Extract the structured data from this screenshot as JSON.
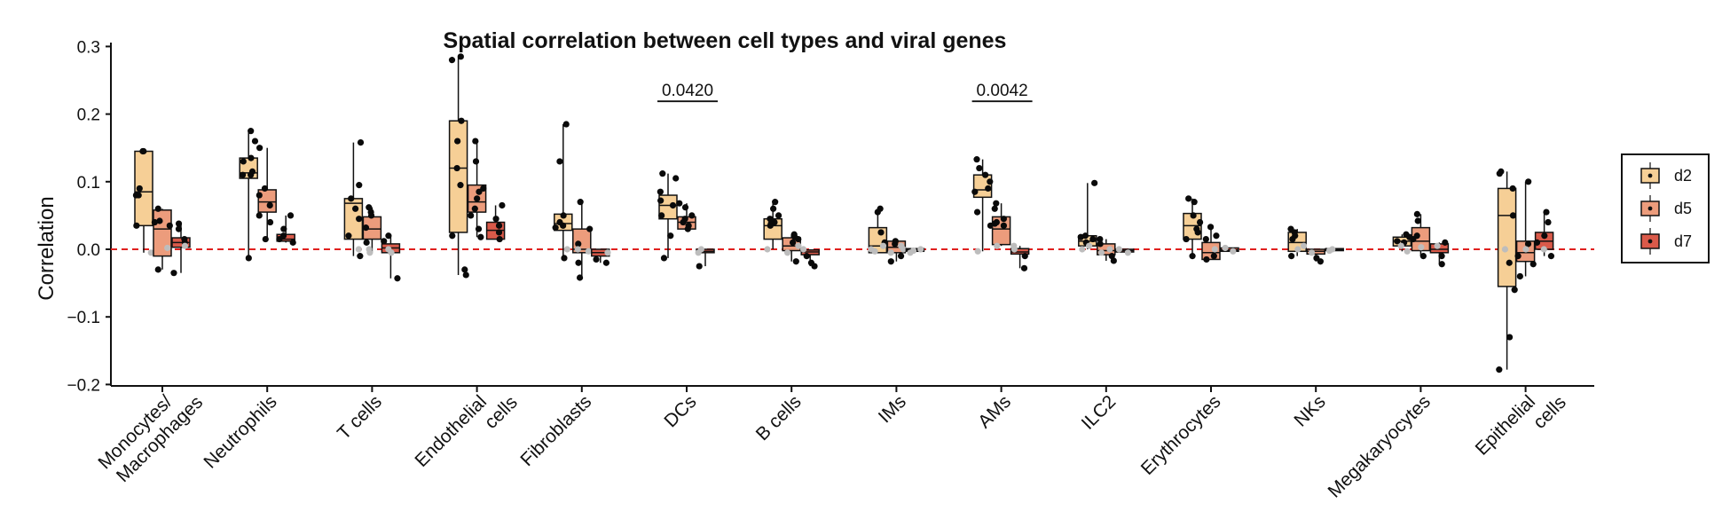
{
  "chart_data": {
    "type": "box",
    "title": "Spatial correlation between cell types and viral genes",
    "xlabel": "",
    "ylabel": "Correlation",
    "ylim": [
      -0.2,
      0.31
    ],
    "yticks": [
      0.3,
      0.2,
      0.1,
      0.0,
      -0.1,
      -0.2
    ],
    "ytick_labels": [
      "0.3",
      "0.2",
      "0.1",
      "0.0",
      "−0.1",
      "−0.2"
    ],
    "reference_line": {
      "y": 0.0,
      "style": "dashed",
      "color": "#e0201f"
    },
    "categories": [
      [
        "Monocytes/",
        "Macrophages"
      ],
      [
        "Neutrophils"
      ],
      [
        "T cells"
      ],
      [
        "Endothelial",
        "cells"
      ],
      [
        "Fibroblasts"
      ],
      [
        "DCs"
      ],
      [
        "B cells"
      ],
      [
        "IMs"
      ],
      [
        "AMs"
      ],
      [
        "ILC2"
      ],
      [
        "Erythrocytes"
      ],
      [
        "NKs"
      ],
      [
        "Megakaryocytes"
      ],
      [
        "Epithelial",
        "cells"
      ]
    ],
    "series": [
      {
        "name": "d2",
        "color": "#f6cf96",
        "boxes": [
          [
            0.035,
            0.085,
            0.145
          ],
          [
            0.105,
            0.113,
            0.135
          ],
          [
            0.015,
            0.068,
            0.075
          ],
          [
            0.025,
            0.12,
            0.19
          ],
          [
            0.028,
            0.038,
            0.052
          ],
          [
            0.045,
            0.065,
            0.08
          ],
          [
            0.015,
            0.035,
            0.045
          ],
          [
            -0.005,
            0.005,
            0.032
          ],
          [
            0.077,
            0.088,
            0.11
          ],
          [
            0.005,
            0.012,
            0.02
          ],
          [
            0.015,
            0.035,
            0.053
          ],
          [
            -0.003,
            0.01,
            0.025
          ],
          [
            0.005,
            0.012,
            0.018
          ],
          [
            -0.055,
            0.05,
            0.09
          ]
        ],
        "points": [
          [
            0.145,
            0.145,
            0.09,
            0.08,
            0.08,
            0.035,
            -0.005
          ],
          [
            0.175,
            0.16,
            0.135,
            0.13,
            0.115,
            0.11,
            0.11,
            -0.013
          ],
          [
            0.158,
            0.095,
            0.075,
            0.06,
            0.045,
            0.02,
            0.0,
            -0.01
          ],
          [
            0.285,
            0.28,
            0.19,
            0.16,
            0.12,
            0.095,
            0.02,
            -0.03,
            -0.038
          ],
          [
            0.185,
            0.13,
            0.05,
            0.04,
            0.035,
            0.032,
            0.0,
            -0.013
          ],
          [
            0.112,
            0.105,
            0.085,
            0.072,
            0.065,
            0.05,
            0.02,
            -0.013
          ],
          [
            0.07,
            0.06,
            0.05,
            0.045,
            0.04,
            0.038,
            0.035,
            0.0
          ],
          [
            0.06,
            0.055,
            0.025,
            0.01,
            0.005,
            0.0,
            -0.003
          ],
          [
            0.133,
            0.12,
            0.11,
            0.1,
            0.09,
            0.085,
            0.055,
            0.035,
            -0.003
          ],
          [
            0.098,
            0.02,
            0.018,
            0.015,
            0.01,
            0.005,
            0.0
          ],
          [
            0.075,
            0.07,
            0.05,
            0.04,
            0.03,
            0.025,
            0.015,
            -0.01
          ],
          [
            0.03,
            0.025,
            0.02,
            0.015,
            0.005,
            0.0,
            -0.01
          ],
          [
            0.022,
            0.018,
            0.012,
            0.01,
            0.005,
            -0.003
          ],
          [
            0.115,
            0.112,
            0.09,
            0.05,
            0.0,
            -0.02,
            -0.06,
            -0.13,
            -0.178
          ]
        ]
      },
      {
        "name": "d5",
        "color": "#ec9c7c",
        "boxes": [
          [
            -0.01,
            0.03,
            0.058
          ],
          [
            0.055,
            0.07,
            0.088
          ],
          [
            0.015,
            0.03,
            0.048
          ],
          [
            0.055,
            0.07,
            0.095
          ],
          [
            -0.005,
            0.0,
            0.03
          ],
          [
            0.03,
            0.04,
            0.048
          ],
          [
            -0.002,
            0.005,
            0.017
          ],
          [
            -0.005,
            0.003,
            0.012
          ],
          [
            0.007,
            0.03,
            0.048
          ],
          [
            -0.008,
            -0.002,
            0.008
          ],
          [
            -0.015,
            -0.005,
            0.01
          ],
          [
            -0.007,
            -0.003,
            0.0
          ],
          [
            -0.002,
            0.012,
            0.032
          ],
          [
            -0.018,
            -0.005,
            0.012
          ]
        ],
        "points": [
          [
            0.06,
            0.042,
            0.04,
            0.035,
            0.002,
            -0.03
          ],
          [
            0.15,
            0.09,
            0.08,
            0.065,
            0.05,
            0.04,
            0.015
          ],
          [
            0.062,
            0.055,
            0.05,
            0.032,
            0.01,
            0.0,
            -0.005
          ],
          [
            0.16,
            0.13,
            0.09,
            0.085,
            0.075,
            0.06,
            0.05,
            0.03,
            0.018
          ],
          [
            0.07,
            0.03,
            0.008,
            0.0,
            -0.003,
            -0.02,
            -0.042
          ],
          [
            0.068,
            0.062,
            0.05,
            0.045,
            0.04,
            0.035,
            0.03
          ],
          [
            0.022,
            0.018,
            0.015,
            0.01,
            0.005,
            -0.005,
            -0.018
          ],
          [
            0.012,
            0.008,
            0.005,
            0.0,
            -0.005,
            -0.01,
            -0.018
          ],
          [
            0.068,
            0.06,
            0.045,
            0.04,
            0.038,
            0.035,
            0.005
          ],
          [
            0.015,
            0.008,
            0.0,
            -0.005,
            -0.01,
            -0.017
          ],
          [
            0.033,
            0.02,
            0.015,
            0.0,
            -0.01,
            -0.015
          ],
          [
            -0.005,
            -0.013,
            -0.018
          ],
          [
            0.052,
            0.042,
            0.02,
            0.015,
            0.003,
            -0.01
          ],
          [
            0.1,
            0.008,
            0.0,
            -0.01,
            -0.022,
            -0.04
          ]
        ]
      },
      {
        "name": "d7",
        "color": "#da5a4a",
        "boxes": [
          [
            0.003,
            0.01,
            0.017
          ],
          [
            0.012,
            0.015,
            0.022
          ],
          [
            -0.005,
            0.002,
            0.008
          ],
          [
            0.015,
            0.028,
            0.04
          ],
          [
            -0.01,
            -0.005,
            0.0
          ],
          [
            -0.005,
            -0.003,
            0.0
          ],
          [
            -0.008,
            -0.004,
            -0.001
          ],
          [
            -0.003,
            -0.001,
            0.001
          ],
          [
            -0.007,
            -0.004,
            0.001
          ],
          [
            -0.004,
            -0.002,
            0.0
          ],
          [
            -0.003,
            -0.001,
            0.002
          ],
          [
            -0.002,
            -0.001,
            0.001
          ],
          [
            -0.005,
            0.0,
            0.008
          ],
          [
            0.0,
            0.012,
            0.025
          ]
        ],
        "points": [
          [
            0.038,
            0.03,
            0.015,
            0.01,
            0.005,
            -0.035
          ],
          [
            0.05,
            0.03,
            0.02,
            0.015,
            0.01
          ],
          [
            0.02,
            0.012,
            0.0,
            -0.005,
            -0.043
          ],
          [
            0.065,
            0.045,
            0.035,
            0.025,
            0.015
          ],
          [
            -0.005,
            -0.015,
            -0.02
          ],
          [
            0.0,
            -0.005,
            -0.025
          ],
          [
            0.0,
            -0.01,
            -0.02,
            -0.025
          ],
          [
            0.0,
            -0.002,
            -0.005
          ],
          [
            0.005,
            0.0,
            -0.01,
            -0.028
          ],
          [
            0.0,
            -0.005
          ],
          [
            0.002,
            -0.003
          ],
          [
            0.0,
            -0.002
          ],
          [
            0.01,
            0.005,
            -0.01,
            -0.022
          ],
          [
            0.055,
            0.04,
            0.02,
            0.01,
            0.0,
            -0.01
          ]
        ]
      }
    ],
    "annotations": [
      {
        "text": "0.0420",
        "category": 5,
        "from_series": 0,
        "to_series": 2,
        "y": 0.215
      },
      {
        "text": "0.0042",
        "category": 8,
        "from_series": 0,
        "to_series": 2,
        "y": 0.215
      }
    ],
    "legend": {
      "position": "right",
      "entries": [
        "d2",
        "d5",
        "d7"
      ]
    }
  }
}
